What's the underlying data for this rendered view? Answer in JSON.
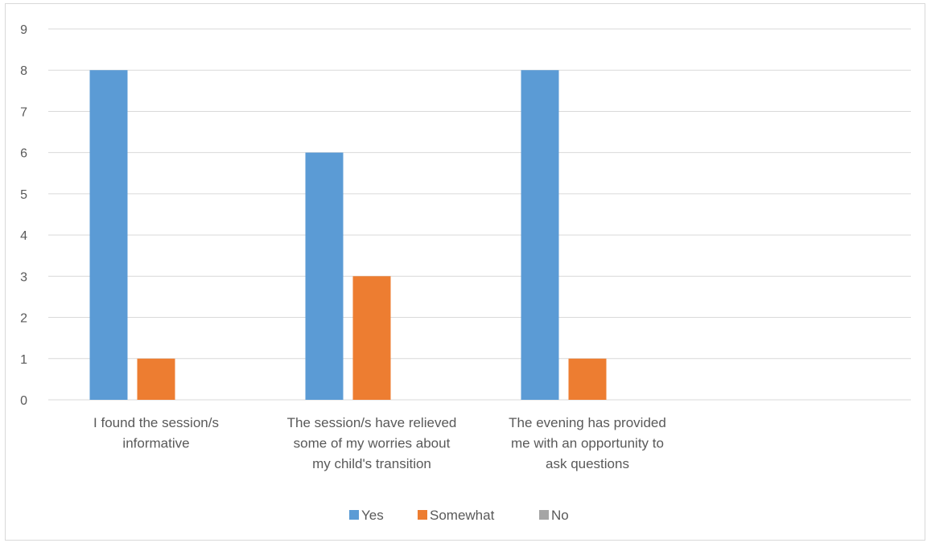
{
  "chart_data": {
    "type": "bar",
    "title": "",
    "xlabel": "",
    "ylabel": "",
    "categories": [
      [
        "I found the session/s",
        "informative"
      ],
      [
        "The session/s have relieved",
        "some of my worries about",
        "my child's transition"
      ],
      [
        "The evening has provided",
        "me with an opportunity to",
        "ask questions"
      ],
      []
    ],
    "series": [
      {
        "name": "Yes",
        "color": "#5b9bd5",
        "values": [
          8,
          6,
          8,
          null
        ]
      },
      {
        "name": "Somewhat",
        "color": "#ed7d31",
        "values": [
          1,
          3,
          1,
          null
        ]
      },
      {
        "name": "No",
        "color": "#a5a5a5",
        "values": [
          0,
          0,
          0,
          null
        ]
      }
    ],
    "ylim": [
      0,
      9
    ],
    "yticks": [
      0,
      1,
      2,
      3,
      4,
      5,
      6,
      7,
      8,
      9
    ],
    "grid": true,
    "legend_position": "bottom"
  }
}
